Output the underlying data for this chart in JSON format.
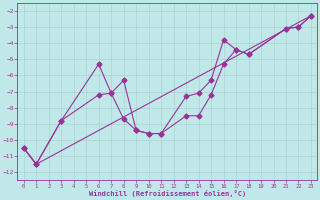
{
  "xlabel": "Windchill (Refroidissement éolien,°C)",
  "background_color": "#c0e8e8",
  "line_color": "#993399",
  "grid_color": "#aacccc",
  "ylim": [
    -12.5,
    -1.5
  ],
  "xlim": [
    -0.5,
    23.5
  ],
  "yticks": [
    -2,
    -3,
    -4,
    -5,
    -6,
    -7,
    -8,
    -9,
    -10,
    -11,
    -12
  ],
  "xticks": [
    0,
    1,
    2,
    3,
    4,
    5,
    6,
    7,
    8,
    9,
    10,
    11,
    12,
    13,
    14,
    15,
    16,
    17,
    18,
    19,
    20,
    21,
    22,
    23
  ],
  "line1_x": [
    0,
    1,
    3,
    6,
    7,
    8,
    9,
    10,
    11,
    13,
    14,
    15,
    16,
    17,
    18,
    21,
    22,
    23
  ],
  "line1_y": [
    -10.5,
    -11.5,
    -8.8,
    -5.3,
    -7.1,
    -6.3,
    -9.4,
    -9.6,
    -9.6,
    -7.3,
    -7.1,
    -6.3,
    -3.8,
    -4.4,
    -4.7,
    -3.1,
    -3.0,
    -2.3
  ],
  "line2_x": [
    0,
    1,
    3,
    6,
    7,
    8,
    9,
    10,
    11,
    13,
    14,
    15,
    16,
    17,
    18,
    21,
    22,
    23
  ],
  "line2_y": [
    -10.5,
    -11.5,
    -8.8,
    -7.2,
    -7.1,
    -8.7,
    -9.4,
    -9.6,
    -9.6,
    -8.5,
    -8.5,
    -7.2,
    -5.3,
    -4.4,
    -4.7,
    -3.1,
    -3.0,
    -2.3
  ],
  "line3_x": [
    0,
    1,
    23
  ],
  "line3_y": [
    -10.5,
    -11.5,
    -2.3
  ]
}
